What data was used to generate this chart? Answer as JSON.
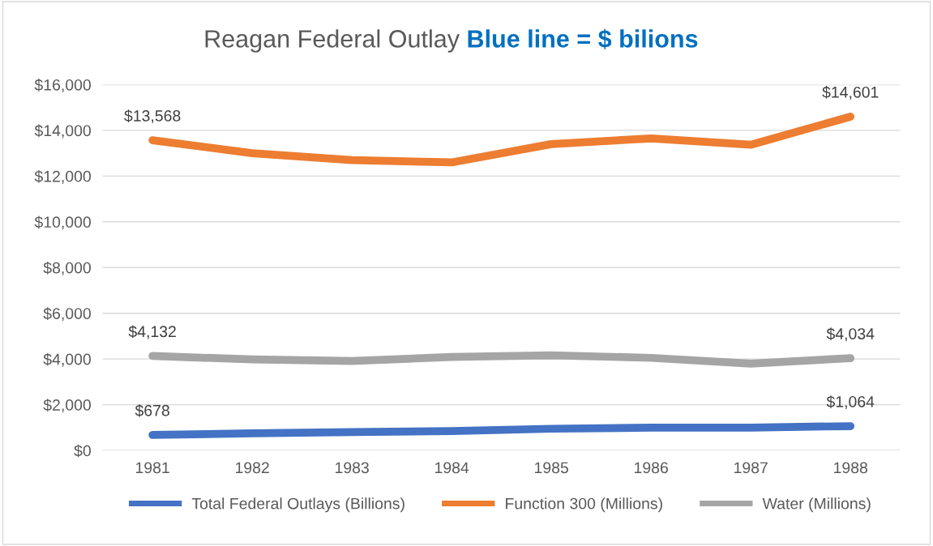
{
  "chart_data": {
    "type": "line",
    "title": "Reagan Federal Outlay",
    "subtitle": "Blue line = $ bilions",
    "categories": [
      "1981",
      "1982",
      "1983",
      "1984",
      "1985",
      "1986",
      "1987",
      "1988"
    ],
    "series": [
      {
        "name": "Total Federal Outlays (Billions)",
        "color": "#4472c4",
        "values": [
          678,
          750,
          800,
          850,
          950,
          1000,
          1000,
          1064
        ],
        "value_labels": [
          "$678",
          null,
          null,
          null,
          null,
          null,
          null,
          "$1,064"
        ]
      },
      {
        "name": "Function 300 (Millions)",
        "color": "#ed7d31",
        "values": [
          13568,
          13000,
          12700,
          12600,
          13400,
          13650,
          13370,
          14601
        ],
        "value_labels": [
          "$13,568",
          null,
          null,
          null,
          null,
          null,
          null,
          "$14,601"
        ]
      },
      {
        "name": "Water (Millions)",
        "color": "#a5a5a5",
        "values": [
          4132,
          3980,
          3910,
          4090,
          4160,
          4050,
          3800,
          4034
        ],
        "value_labels": [
          "$4,132",
          null,
          null,
          null,
          null,
          null,
          null,
          "$4,034"
        ]
      }
    ],
    "ylim": [
      0,
      16000
    ],
    "yticks": [
      {
        "value": 0,
        "label": "$0"
      },
      {
        "value": 2000,
        "label": "$2,000"
      },
      {
        "value": 4000,
        "label": "$4,000"
      },
      {
        "value": 6000,
        "label": "$6,000"
      },
      {
        "value": 8000,
        "label": "$8,000"
      },
      {
        "value": 10000,
        "label": "$10,000"
      },
      {
        "value": 12000,
        "label": "$12,000"
      },
      {
        "value": 14000,
        "label": "$14,000"
      },
      {
        "value": 16000,
        "label": "$16,000"
      }
    ],
    "grid": "y",
    "legend": "bottom",
    "marker": "none",
    "line_style": "solid"
  }
}
